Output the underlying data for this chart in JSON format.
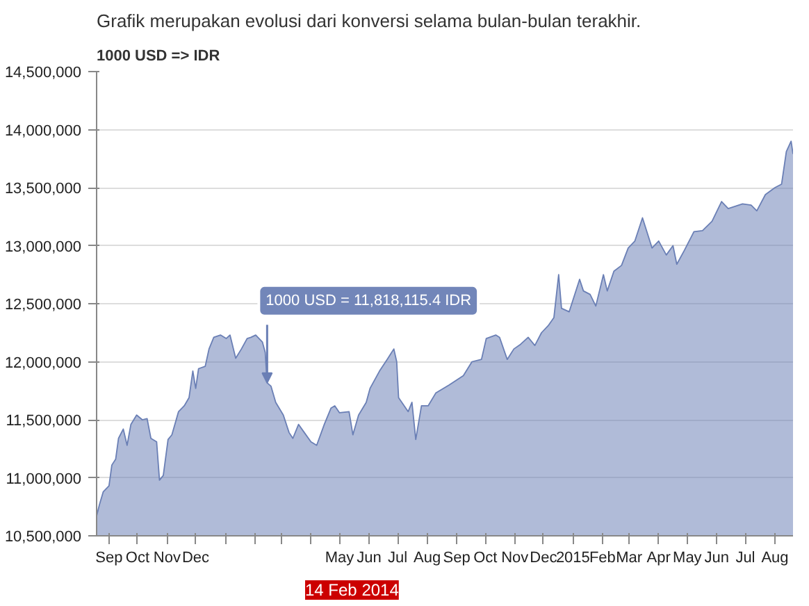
{
  "chart_data": {
    "type": "area",
    "title": "Grafik merupakan evolusi dari konversi selama bulan-bulan terakhir.",
    "ylabel": "1000 USD => IDR",
    "x": [
      "2013-08-19",
      "2013-08-22",
      "2013-08-26",
      "2013-09-01",
      "2013-09-04",
      "2013-09-08",
      "2013-09-11",
      "2013-09-16",
      "2013-09-20",
      "2013-09-24",
      "2013-09-30",
      "2013-10-06",
      "2013-10-11",
      "2013-10-15",
      "2013-10-21",
      "2013-10-24",
      "2013-10-28",
      "2013-11-02",
      "2013-11-06",
      "2013-11-13",
      "2013-11-19",
      "2013-11-24",
      "2013-11-28",
      "2013-12-01",
      "2013-12-04",
      "2013-12-11",
      "2013-12-15",
      "2013-12-20",
      "2013-12-27",
      "2014-01-02",
      "2014-01-06",
      "2014-01-12",
      "2014-01-18",
      "2014-01-24",
      "2014-01-28",
      "2014-02-02",
      "2014-02-09",
      "2014-02-12",
      "2014-02-14",
      "2014-02-18",
      "2014-02-23",
      "2014-03-03",
      "2014-03-09",
      "2014-03-13",
      "2014-03-19",
      "2014-03-25",
      "2014-04-01",
      "2014-04-07",
      "2014-04-15",
      "2014-04-22",
      "2014-04-26",
      "2014-05-01",
      "2014-05-11",
      "2014-05-15",
      "2014-05-21",
      "2014-05-29",
      "2014-06-02",
      "2014-06-12",
      "2014-06-20",
      "2014-06-27",
      "2014-06-30",
      "2014-07-02",
      "2014-07-12",
      "2014-07-16",
      "2014-07-20",
      "2014-07-26",
      "2014-08-02",
      "2014-08-10",
      "2014-08-24",
      "2014-09-08",
      "2014-09-17",
      "2014-09-27",
      "2014-10-02",
      "2014-10-12",
      "2014-10-16",
      "2014-10-24",
      "2014-10-31",
      "2014-11-07",
      "2014-11-15",
      "2014-11-22",
      "2014-11-29",
      "2014-12-06",
      "2014-12-12",
      "2014-12-17",
      "2014-12-20",
      "2014-12-28",
      "2015-01-08",
      "2015-01-12",
      "2015-01-19",
      "2015-01-25",
      "2015-02-02",
      "2015-02-06",
      "2015-02-13",
      "2015-02-21",
      "2015-02-28",
      "2015-03-07",
      "2015-03-15",
      "2015-03-25",
      "2015-04-01",
      "2015-04-09",
      "2015-04-16",
      "2015-04-20",
      "2015-04-28",
      "2015-05-08",
      "2015-05-17",
      "2015-05-27",
      "2015-06-06",
      "2015-06-13",
      "2015-06-28",
      "2015-07-07",
      "2015-07-13",
      "2015-07-22",
      "2015-08-01",
      "2015-08-08",
      "2015-08-13",
      "2015-08-18",
      "2015-08-20"
    ],
    "series": [
      {
        "color": "#6a7fb5",
        "values": [
          10670000,
          10770000,
          10880000,
          10930000,
          11110000,
          11160000,
          11340000,
          11420000,
          11280000,
          11460000,
          11540000,
          11500000,
          11510000,
          11340000,
          11310000,
          10980000,
          11020000,
          11330000,
          11370000,
          11570000,
          11620000,
          11690000,
          11920000,
          11770000,
          11940000,
          11960000,
          12110000,
          12210000,
          12230000,
          12200000,
          12230000,
          12030000,
          12110000,
          12200000,
          12210000,
          12230000,
          12170000,
          12080000,
          11818115.4,
          11790000,
          11650000,
          11540000,
          11390000,
          11340000,
          11460000,
          11390000,
          11310000,
          11280000,
          11460000,
          11600000,
          11620000,
          11560000,
          11570000,
          11370000,
          11540000,
          11650000,
          11770000,
          11920000,
          12020000,
          12110000,
          12000000,
          11690000,
          11570000,
          11650000,
          11330000,
          11620000,
          11620000,
          11730000,
          11800000,
          11880000,
          12000000,
          12020000,
          12200000,
          12230000,
          12210000,
          12020000,
          12110000,
          12150000,
          12210000,
          12140000,
          12250000,
          12310000,
          12380000,
          12750000,
          12460000,
          12430000,
          12710000,
          12610000,
          12580000,
          12480000,
          12750000,
          12610000,
          12780000,
          12830000,
          12980000,
          13040000,
          13240000,
          12980000,
          13040000,
          12920000,
          13000000,
          12840000,
          12960000,
          13120000,
          13130000,
          13210000,
          13380000,
          13320000,
          13360000,
          13350000,
          13300000,
          13440000,
          13500000,
          13530000,
          13810000,
          13900000,
          13790000
        ]
      }
    ],
    "xlim": [
      "2013-08-19",
      "2015-08-20"
    ],
    "xticks": [
      {
        "value": "2013-09-01",
        "label": "Sep"
      },
      {
        "value": "2013-10-01",
        "label": "Oct"
      },
      {
        "value": "2013-11-01",
        "label": "Nov"
      },
      {
        "value": "2013-12-01",
        "label": "Dec"
      },
      {
        "value": "2014-01-01",
        "label": null
      },
      {
        "value": "2014-02-01",
        "label": null
      },
      {
        "value": "2014-03-01",
        "label": null
      },
      {
        "value": "2014-04-01",
        "label": null
      },
      {
        "value": "2014-05-01",
        "label": "May"
      },
      {
        "value": "2014-06-01",
        "label": "Jun"
      },
      {
        "value": "2014-07-01",
        "label": "Jul"
      },
      {
        "value": "2014-08-01",
        "label": "Aug"
      },
      {
        "value": "2014-09-01",
        "label": "Sep"
      },
      {
        "value": "2014-10-01",
        "label": "Oct"
      },
      {
        "value": "2014-11-01",
        "label": "Nov"
      },
      {
        "value": "2014-12-01",
        "label": "Dec"
      },
      {
        "value": "2015-01-01",
        "label": "2015"
      },
      {
        "value": "2015-02-01",
        "label": "Feb"
      },
      {
        "value": "2015-03-01",
        "label": "Mar"
      },
      {
        "value": "2015-04-01",
        "label": "Apr"
      },
      {
        "value": "2015-05-01",
        "label": "May"
      },
      {
        "value": "2015-06-01",
        "label": "Jun"
      },
      {
        "value": "2015-07-01",
        "label": "Jul"
      },
      {
        "value": "2015-08-01",
        "label": "Aug"
      }
    ],
    "ylim": [
      10500000,
      14500000
    ],
    "yticks": [
      {
        "value": 10500000,
        "label": "10,500,000"
      },
      {
        "value": 11000000,
        "label": "11,000,000"
      },
      {
        "value": 11500000,
        "label": "11,500,000"
      },
      {
        "value": 12000000,
        "label": "12,000,000"
      },
      {
        "value": 12500000,
        "label": "12,500,000"
      },
      {
        "value": 13000000,
        "label": "13,000,000"
      },
      {
        "value": 13500000,
        "label": "13,500,000"
      },
      {
        "value": 14000000,
        "label": "14,000,000"
      },
      {
        "value": 14500000,
        "label": "14,500,000"
      }
    ],
    "grid": "y",
    "annotations": [
      {
        "text": "1000 USD = 11,818,115.4 IDR",
        "x": "2014-02-14",
        "y": 11818115.4
      },
      "14 Feb 2014"
    ]
  }
}
